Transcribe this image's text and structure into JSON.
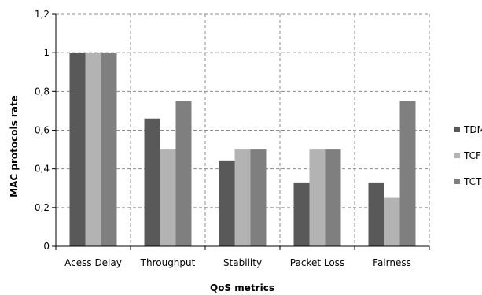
{
  "chart_data": {
    "type": "bar",
    "title": "",
    "xlabel": "QoS metrics",
    "ylabel": "MAC protocols rate",
    "categories": [
      "Acess Delay",
      "Throughput",
      "Stability",
      "Packet Loss",
      "Fairness"
    ],
    "y_tick_labels": [
      "0",
      "0,2",
      "0,4",
      "0,6",
      "0,8",
      "1",
      "1,2"
    ],
    "ylim": [
      0,
      1.2
    ],
    "grid": true,
    "legend_position": "right",
    "series": [
      {
        "name": "TDM",
        "color": "#595959",
        "values": [
          1.0,
          0.66,
          0.44,
          0.33,
          0.33
        ]
      },
      {
        "name": "TCF",
        "color": "#b3b3b3",
        "values": [
          1.0,
          0.5,
          0.5,
          0.5,
          0.25
        ]
      },
      {
        "name": "TCT",
        "color": "#7f7f7f",
        "values": [
          1.0,
          0.75,
          0.5,
          0.5,
          0.75
        ]
      }
    ]
  }
}
